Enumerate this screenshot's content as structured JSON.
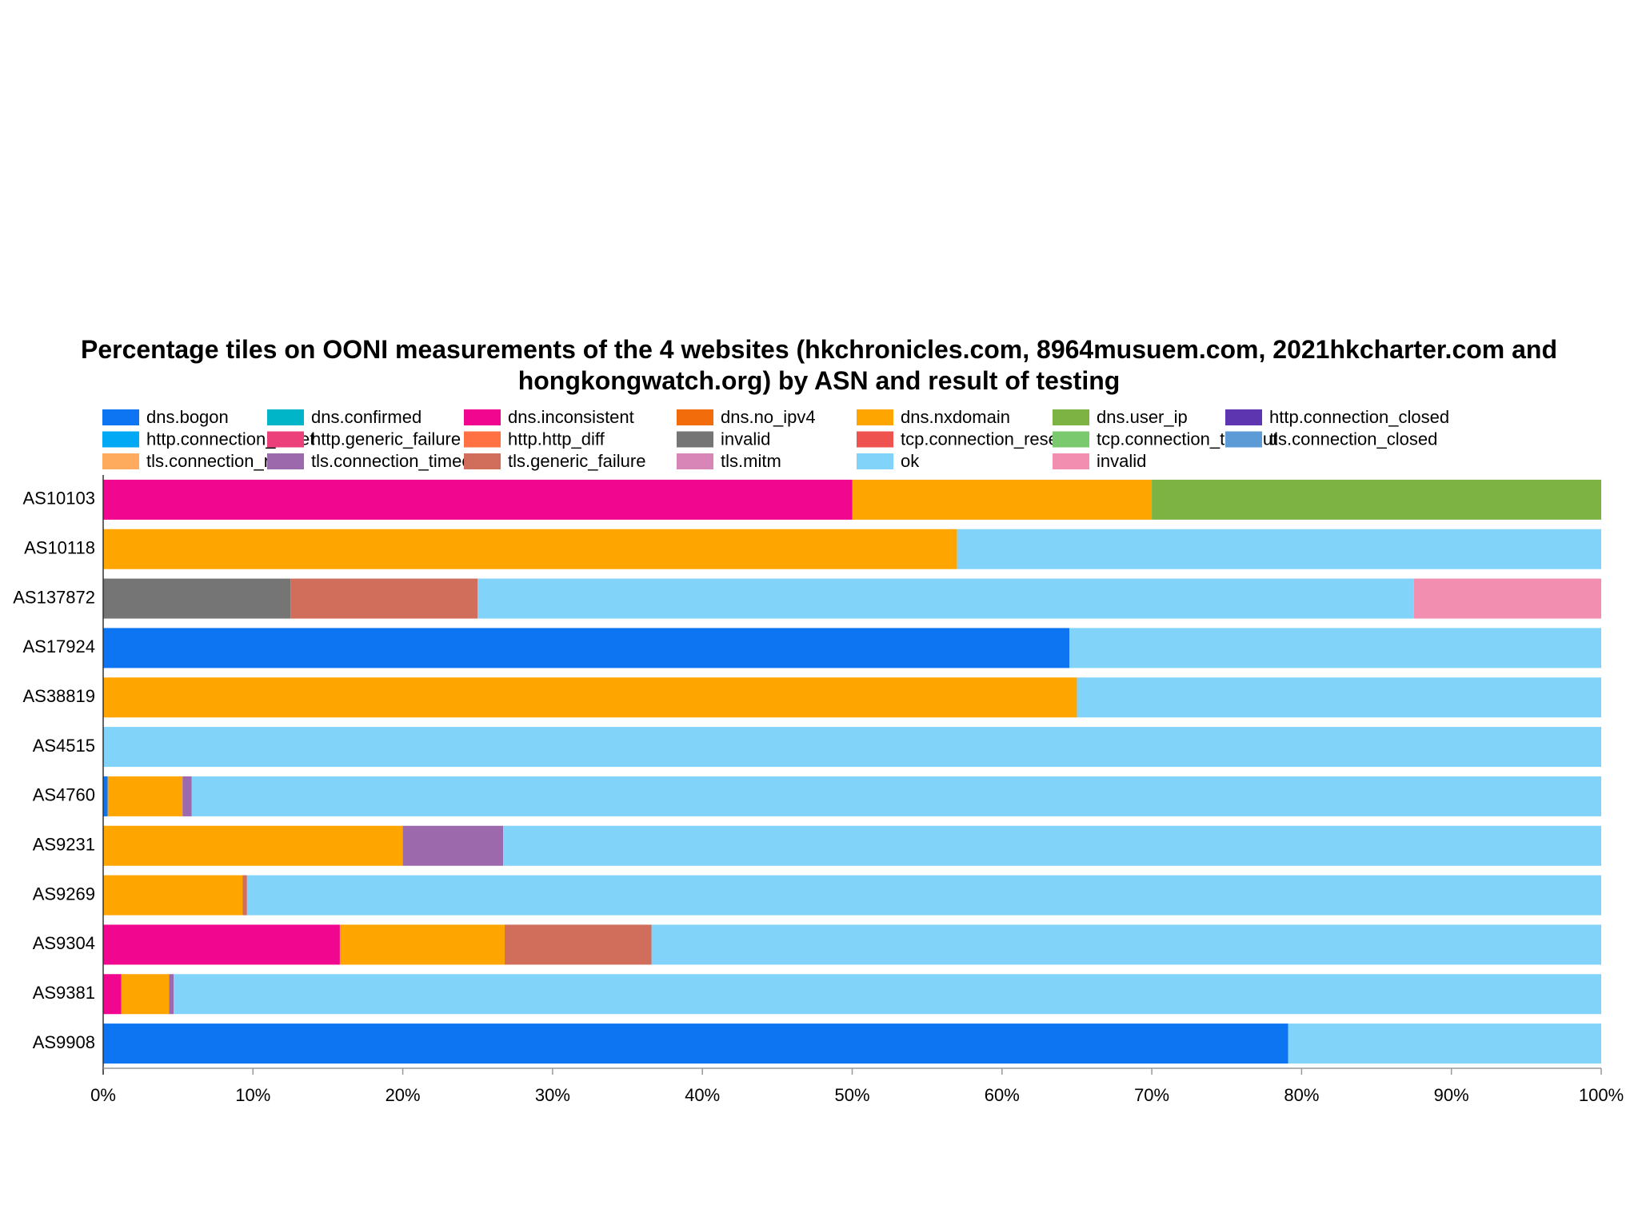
{
  "chart_data": {
    "type": "stacked-bar-horizontal",
    "title": "Percentage tiles on OONI measurements of the 4 websites (hkchronicles.com, 8964musuem.com,  2021hkcharter.com and hongkongwatch.org) by ASN and result of testing",
    "categories": [
      "AS10103",
      "AS10118",
      "AS137872",
      "AS17924",
      "AS38819",
      "AS4515",
      "AS4760",
      "AS9231",
      "AS9269",
      "AS9304",
      "AS9381",
      "AS9908"
    ],
    "series": [
      {
        "name": "dns.bogon",
        "color": "#0d74f2",
        "values": [
          0,
          0,
          0,
          64.5,
          0,
          0,
          0.3,
          0,
          0,
          0,
          0,
          79.1
        ]
      },
      {
        "name": "dns.confirmed",
        "color": "#00b5c8",
        "values": [
          0,
          0,
          0,
          0,
          0,
          0,
          0,
          0,
          0,
          0,
          0,
          0
        ]
      },
      {
        "name": "dns.inconsistent",
        "color": "#f0068f",
        "values": [
          50,
          0,
          0,
          0,
          0,
          0,
          0,
          0,
          0,
          15.8,
          1.2,
          0
        ]
      },
      {
        "name": "dns.no_ipv4",
        "color": "#f26c0c",
        "values": [
          0,
          0,
          0,
          0,
          0,
          0,
          0,
          0,
          0,
          0,
          0,
          0
        ]
      },
      {
        "name": "dns.nxdomain",
        "color": "#ffa500",
        "values": [
          20,
          57,
          0,
          0,
          65,
          0,
          5,
          20,
          9.3,
          11,
          3.2,
          0
        ]
      },
      {
        "name": "dns.user_ip",
        "color": "#7cb342",
        "values": [
          30,
          0,
          0,
          0,
          0,
          0,
          0,
          0,
          0,
          0,
          0,
          0
        ]
      },
      {
        "name": "http.connection_closed",
        "color": "#5e35b1",
        "values": [
          0,
          0,
          0,
          0,
          0,
          0,
          0,
          0,
          0,
          0,
          0,
          0
        ]
      },
      {
        "name": "http.connection_reset",
        "color": "#03a9f4",
        "values": [
          0,
          0,
          0,
          0,
          0,
          0,
          0,
          0,
          0,
          0,
          0,
          0
        ]
      },
      {
        "name": "http.generic_failure",
        "color": "#ec407a",
        "values": [
          0,
          0,
          0,
          0,
          0,
          0,
          0,
          0,
          0,
          0,
          0,
          0
        ]
      },
      {
        "name": "http.http_diff",
        "color": "#ff7043",
        "values": [
          0,
          0,
          0,
          0,
          0,
          0,
          0,
          0,
          0,
          0,
          0,
          0
        ]
      },
      {
        "name": "invalid",
        "color": "#757575",
        "values": [
          0,
          0,
          12.5,
          0,
          0,
          0,
          0,
          0,
          0,
          0,
          0,
          0
        ]
      },
      {
        "name": "tcp.connection_reset",
        "color": "#ef5350",
        "values": [
          0,
          0,
          0,
          0,
          0,
          0,
          0,
          0,
          0,
          0,
          0,
          0
        ]
      },
      {
        "name": "tcp.connection_timeout",
        "color": "#7bc96f",
        "values": [
          0,
          0,
          0,
          0,
          0,
          0,
          0,
          0,
          0,
          0,
          0,
          0
        ]
      },
      {
        "name": "tls.connection_closed",
        "color": "#5c9bd6",
        "values": [
          0,
          0,
          0,
          0,
          0,
          0,
          0,
          0,
          0,
          0,
          0,
          0
        ]
      },
      {
        "name": "tls.connection_reset",
        "color": "#ffab5e",
        "values": [
          0,
          0,
          0,
          0,
          0,
          0,
          0,
          0,
          0,
          0,
          0,
          0
        ]
      },
      {
        "name": "tls.connection_timeout",
        "color": "#9c69ac",
        "values": [
          0,
          0,
          0,
          0,
          0,
          0,
          0.6,
          6.7,
          0,
          0,
          0.3,
          0
        ]
      },
      {
        "name": "tls.generic_failure",
        "color": "#d06e5b",
        "values": [
          0,
          0,
          12.5,
          0,
          0,
          0,
          0,
          0,
          0.3,
          9.8,
          0,
          0
        ]
      },
      {
        "name": "tls.mitm",
        "color": "#d885b8",
        "values": [
          0,
          0,
          0,
          0,
          0,
          0,
          0,
          0,
          0,
          0,
          0,
          0
        ]
      },
      {
        "name": "ok",
        "color": "#82d3fa",
        "values": [
          0,
          43,
          62.5,
          35.5,
          35,
          100,
          94.1,
          73.3,
          90.4,
          63.4,
          95.3,
          20.9
        ]
      },
      {
        "name": "invalid",
        "color": "#f28fb1",
        "values": [
          0,
          0,
          12.5,
          0,
          0,
          0,
          0,
          0,
          0,
          0,
          0,
          0
        ]
      }
    ],
    "xlim": [
      0,
      100
    ],
    "xticks": [
      {
        "value": 0,
        "label": "0%"
      },
      {
        "value": 10,
        "label": "10%"
      },
      {
        "value": 20,
        "label": "20%"
      },
      {
        "value": 30,
        "label": "30%"
      },
      {
        "value": 40,
        "label": "40%"
      },
      {
        "value": 50,
        "label": "50%"
      },
      {
        "value": 60,
        "label": "60%"
      },
      {
        "value": 70,
        "label": "70%"
      },
      {
        "value": 80,
        "label": "80%"
      },
      {
        "value": 90,
        "label": "90%"
      },
      {
        "value": 100,
        "label": "100%"
      }
    ]
  }
}
